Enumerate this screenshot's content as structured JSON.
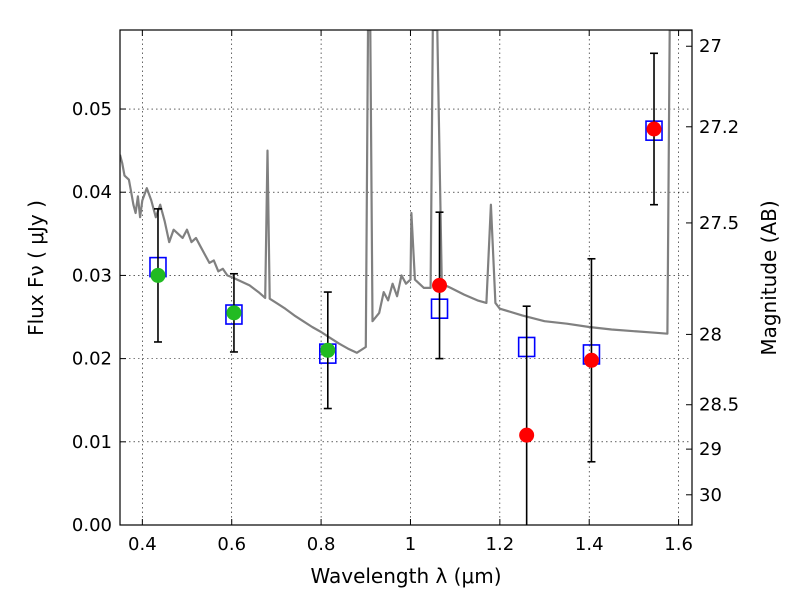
{
  "chart_data": {
    "type": "scatter",
    "xlabel": "Wavelength  λ (μm)",
    "ylabel": "Flux  Fν  ( μJy )",
    "ylabel_right": "Magnitude (AB)",
    "xlim": [
      0.35,
      1.63
    ],
    "ylim": [
      0.0,
      0.0595
    ],
    "grid": true,
    "x_ticks": [
      0.4,
      0.6,
      0.8,
      1.0,
      1.2,
      1.4,
      1.6
    ],
    "x_tick_labels": [
      "0.4",
      "0.6",
      "0.8",
      "1",
      "1.2",
      "1.4",
      "1.6"
    ],
    "y_ticks": [
      0.0,
      0.01,
      0.02,
      0.03,
      0.04,
      0.05
    ],
    "y_tick_labels": [
      "0.00",
      "0.01",
      "0.02",
      "0.03",
      "0.04",
      "0.05"
    ],
    "mag_ticks": [
      27,
      27.2,
      27.5,
      28,
      28.5,
      29,
      30
    ],
    "mag_tick_labels": [
      "27",
      "27.2",
      "27.5",
      "28",
      "28.5",
      "29",
      "30"
    ],
    "colors": {
      "spectrum": "#808080",
      "green_points": "#22bb22",
      "red_points": "#ff0000",
      "model_boxes": "#0000ff",
      "errorbars": "#000000"
    },
    "series": [
      {
        "x": [
          0.435,
          0.605,
          0.815
        ],
        "y": [
          0.03,
          0.0255,
          0.021
        ],
        "yerr": [
          0.008,
          0.0047,
          0.007
        ]
      },
      {
        "x": [
          1.065,
          1.26,
          1.405,
          1.545
        ],
        "y": [
          0.0288,
          0.0108,
          0.0198,
          0.0476
        ],
        "yerr": [
          0.0088,
          0.0155,
          0.0122,
          0.0091
        ]
      },
      {
        "x": [
          0.435,
          0.605,
          0.815,
          1.065,
          1.26,
          1.405,
          1.545
        ],
        "y": [
          0.031,
          0.0253,
          0.0206,
          0.026,
          0.0214,
          0.0205,
          0.0474
        ]
      }
    ],
    "spectrum": [
      [
        0.35,
        0.0445
      ],
      [
        0.355,
        0.0435
      ],
      [
        0.36,
        0.042
      ],
      [
        0.37,
        0.0415
      ],
      [
        0.375,
        0.04
      ],
      [
        0.38,
        0.0385
      ],
      [
        0.385,
        0.0375
      ],
      [
        0.39,
        0.0395
      ],
      [
        0.395,
        0.037
      ],
      [
        0.4,
        0.039
      ],
      [
        0.41,
        0.0405
      ],
      [
        0.42,
        0.039
      ],
      [
        0.43,
        0.037
      ],
      [
        0.44,
        0.0385
      ],
      [
        0.45,
        0.0365
      ],
      [
        0.46,
        0.034
      ],
      [
        0.47,
        0.0355
      ],
      [
        0.48,
        0.035
      ],
      [
        0.49,
        0.0345
      ],
      [
        0.5,
        0.0355
      ],
      [
        0.51,
        0.034
      ],
      [
        0.52,
        0.0345
      ],
      [
        0.53,
        0.0335
      ],
      [
        0.54,
        0.0325
      ],
      [
        0.55,
        0.0315
      ],
      [
        0.56,
        0.0318
      ],
      [
        0.57,
        0.0305
      ],
      [
        0.58,
        0.0308
      ],
      [
        0.59,
        0.03
      ],
      [
        0.6,
        0.0298
      ],
      [
        0.62,
        0.0293
      ],
      [
        0.64,
        0.0288
      ],
      [
        0.66,
        0.028
      ],
      [
        0.675,
        0.0273
      ],
      [
        0.68,
        0.045
      ],
      [
        0.685,
        0.0272
      ],
      [
        0.7,
        0.0267
      ],
      [
        0.72,
        0.026
      ],
      [
        0.74,
        0.0252
      ],
      [
        0.76,
        0.0245
      ],
      [
        0.78,
        0.0238
      ],
      [
        0.8,
        0.0232
      ],
      [
        0.82,
        0.0225
      ],
      [
        0.84,
        0.0218
      ],
      [
        0.86,
        0.0212
      ],
      [
        0.88,
        0.0207
      ],
      [
        0.9,
        0.0214
      ],
      [
        0.905,
        0.0595
      ],
      [
        0.91,
        0.0595
      ],
      [
        0.915,
        0.0245
      ],
      [
        0.93,
        0.0255
      ],
      [
        0.94,
        0.028
      ],
      [
        0.95,
        0.027
      ],
      [
        0.96,
        0.029
      ],
      [
        0.97,
        0.0275
      ],
      [
        0.98,
        0.03
      ],
      [
        0.99,
        0.029
      ],
      [
        1.0,
        0.0295
      ],
      [
        1.002,
        0.0375
      ],
      [
        1.01,
        0.0295
      ],
      [
        1.03,
        0.0285
      ],
      [
        1.045,
        0.0285
      ],
      [
        1.05,
        0.0595
      ],
      [
        1.06,
        0.0595
      ],
      [
        1.07,
        0.029
      ],
      [
        1.09,
        0.0285
      ],
      [
        1.12,
        0.0277
      ],
      [
        1.15,
        0.027
      ],
      [
        1.17,
        0.0267
      ],
      [
        1.18,
        0.0385
      ],
      [
        1.19,
        0.0267
      ],
      [
        1.2,
        0.026
      ],
      [
        1.25,
        0.0252
      ],
      [
        1.3,
        0.0245
      ],
      [
        1.35,
        0.0242
      ],
      [
        1.4,
        0.0238
      ],
      [
        1.45,
        0.0235
      ],
      [
        1.5,
        0.0233
      ],
      [
        1.55,
        0.0231
      ],
      [
        1.575,
        0.023
      ],
      [
        1.58,
        0.0595
      ],
      [
        1.63,
        0.0595
      ]
    ]
  }
}
